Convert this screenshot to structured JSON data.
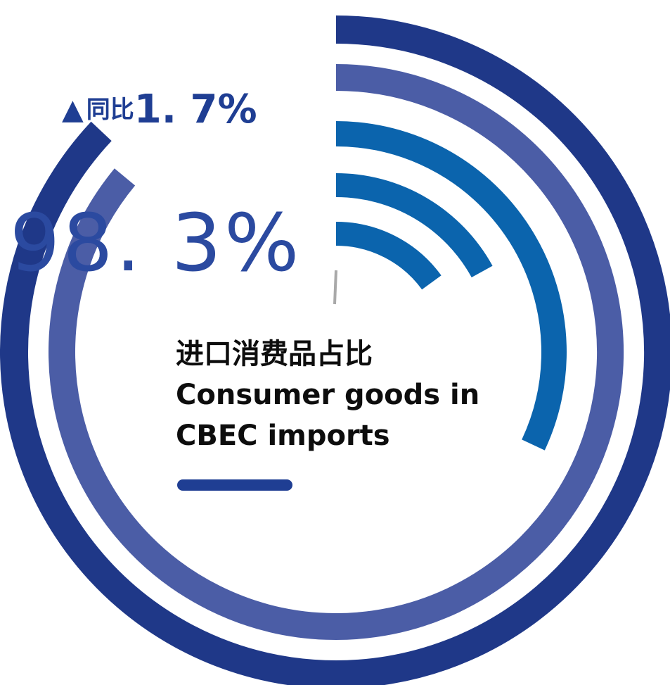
{
  "chart_data": {
    "type": "radial-bar",
    "value": 98.3,
    "value_label": "98. 3%",
    "yoy_label": "同比",
    "yoy_value": "1. 7%",
    "title_cn": "进口消费品占比",
    "title_en_line1": "Consumer goods in",
    "title_en_line2": "CBEC imports",
    "rings": [
      {
        "color": "#1f3888",
        "fraction": 0.87
      },
      {
        "color": "#4b5da6",
        "fraction": 0.86
      },
      {
        "color": "#0b64ad",
        "fraction": 0.32
      },
      {
        "color": "#0b64ad",
        "fraction": 0.17
      },
      {
        "color": "#0b64ad",
        "fraction": 0.15
      }
    ],
    "accent_color": "#1f3e93"
  }
}
